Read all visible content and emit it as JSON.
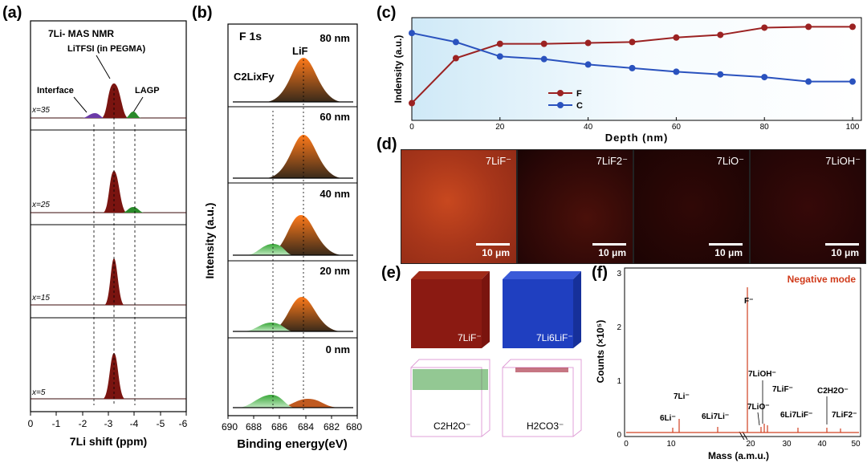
{
  "panel_labels": {
    "a": "(a)",
    "b": "(b)",
    "c": "(c)",
    "d": "(d)",
    "e": "(e)",
    "f": "(f)"
  },
  "panel_a": {
    "title": "7Li- MAS NMR",
    "annotations": {
      "litfsi": "LiTFSI (in PEGMA)",
      "interface": "Interface",
      "lagp": "LAGP"
    },
    "stack_labels": [
      "x=35",
      "x=25",
      "x=15",
      "x=5"
    ],
    "x_ticks": [
      "0",
      "-1",
      "-2",
      "-3",
      "-4",
      "-5",
      "-6"
    ],
    "x_label": "7Li shift (ppm)"
  },
  "panel_b": {
    "title": "F 1s",
    "peak_labels": {
      "lif": "LiF",
      "c2lixfy": "C2LixFy"
    },
    "depth_labels": [
      "80 nm",
      "60 nm",
      "40 nm",
      "20 nm",
      "0 nm"
    ],
    "x_ticks": [
      "690",
      "688",
      "686",
      "684",
      "682",
      "680"
    ],
    "x_label": "Binding energy(eV)",
    "y_label": "Intensity (a.u.)"
  },
  "chart_data": {
    "type": "line",
    "title": "",
    "xlabel": "Depth (nm)",
    "ylabel": "Indensity (a.u.)",
    "xlim": [
      0,
      100
    ],
    "ylim": [
      0,
      1
    ],
    "x": [
      0,
      10,
      20,
      30,
      40,
      50,
      60,
      70,
      80,
      90,
      100
    ],
    "x_ticks": [
      "0",
      "20",
      "40",
      "60",
      "80",
      "100"
    ],
    "series": [
      {
        "name": "F",
        "color": "#9b2222",
        "values": [
          0.12,
          0.62,
          0.78,
          0.78,
          0.79,
          0.8,
          0.85,
          0.88,
          0.96,
          0.97,
          0.97
        ]
      },
      {
        "name": "C",
        "color": "#2a52be",
        "values": [
          0.9,
          0.8,
          0.64,
          0.61,
          0.55,
          0.51,
          0.47,
          0.44,
          0.41,
          0.36,
          0.36
        ]
      }
    ],
    "legend": [
      "F",
      "C"
    ]
  },
  "panel_d": {
    "maps": [
      {
        "label": "7LiF⁻",
        "scale": "10 μm",
        "color": "#b83a18"
      },
      {
        "label": "7LiF2⁻",
        "scale": "10 μm",
        "color": "#3a0a08"
      },
      {
        "label": "7LiO⁻",
        "scale": "10 μm",
        "color": "#260605"
      },
      {
        "label": "7LiOH⁻",
        "scale": "10 μm",
        "color": "#2a0706"
      }
    ]
  },
  "panel_e": {
    "cubes": [
      {
        "label": "7LiF⁻",
        "color": "#8b1a12"
      },
      {
        "label": "7Li6LiF⁻",
        "color": "#1f3fc0"
      },
      {
        "label": "C2H2O⁻",
        "color": "#2a8a2a"
      },
      {
        "label": "H2CO3⁻",
        "color": "#a01a30"
      }
    ]
  },
  "panel_f": {
    "mode": "Negative mode",
    "y_label": "Counts (×10⁵)",
    "x_label": "Mass (a.m.u.)",
    "y_ticks": [
      "0",
      "1",
      "2",
      "3"
    ],
    "x_ticks": [
      "0",
      "10",
      "20",
      "30",
      "40",
      "50"
    ],
    "peak_labels": {
      "f": "F⁻",
      "li7": "7Li⁻",
      "li6": "6Li⁻",
      "li67": "6Li7Li⁻",
      "lioh": "7LiOH⁻",
      "lio": "7LiO⁻",
      "lif": "7LiF⁻",
      "li6lif": "6Li7LiF⁻",
      "c2h2o": "C2H2O⁻",
      "lif2": "7LiF2⁻"
    }
  }
}
